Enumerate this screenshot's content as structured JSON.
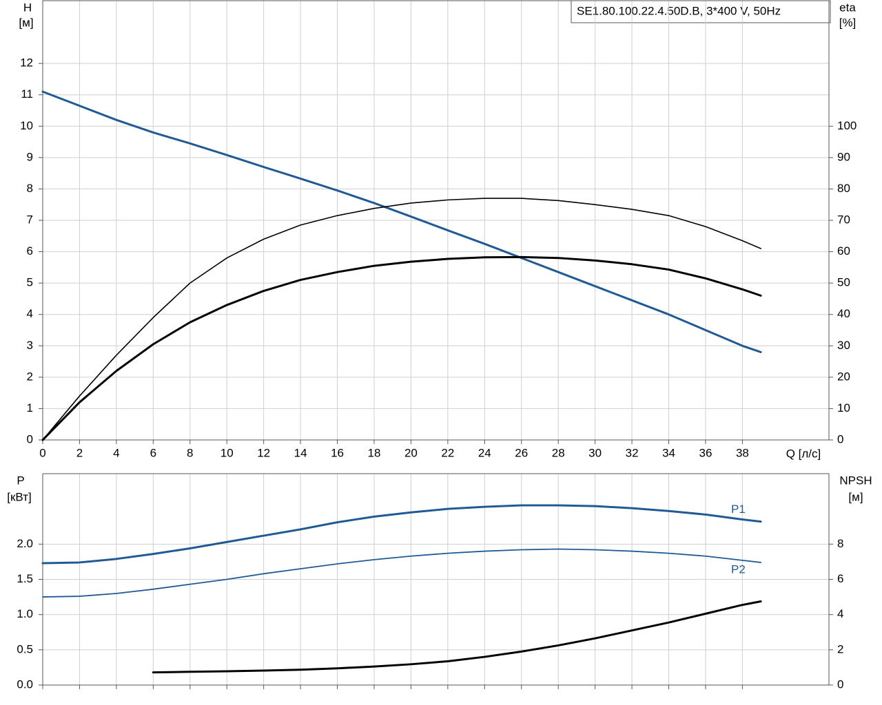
{
  "chart_data": [
    {
      "type": "line",
      "title": "SE1.80.100.22.4.50D.B, 3*400 V, 50Hz",
      "xlabel": "Q [л/с]",
      "ylabel": "H",
      "yunit": "[м]",
      "y2label": "eta",
      "y2unit": "[%]",
      "x": [
        0,
        2,
        4,
        6,
        8,
        10,
        12,
        14,
        16,
        18,
        20,
        22,
        24,
        26,
        28,
        30,
        32,
        34,
        36,
        38,
        39
      ],
      "xlim": [
        0,
        42.7
      ],
      "xticks": [
        0,
        2,
        4,
        6,
        8,
        10,
        12,
        14,
        16,
        18,
        20,
        22,
        24,
        26,
        28,
        30,
        32,
        34,
        36,
        38
      ],
      "ylim": [
        0,
        14
      ],
      "yticks": [
        0,
        1,
        2,
        3,
        4,
        5,
        6,
        7,
        8,
        9,
        10,
        11,
        12
      ],
      "y2lim": [
        0,
        140
      ],
      "y2ticks": [
        0,
        10,
        20,
        30,
        40,
        50,
        60,
        70,
        80,
        90,
        100
      ],
      "grid": true,
      "series": [
        {
          "color": "#1f5a96",
          "values": [
            11.1,
            10.65,
            10.2,
            9.8,
            9.45,
            9.08,
            8.7,
            8.33,
            7.95,
            7.55,
            7.12,
            6.68,
            6.25,
            5.8,
            5.35,
            4.9,
            4.45,
            4.0,
            3.5,
            3.0,
            2.8
          ]
        },
        {
          "color": "#000000",
          "axis": "y2",
          "values": [
            0,
            14,
            27,
            39,
            50,
            58,
            64,
            68.5,
            71.5,
            73.8,
            75.5,
            76.5,
            77,
            77,
            76.3,
            75,
            73.5,
            71.5,
            68,
            63.5,
            61
          ]
        },
        {
          "color": "#000000",
          "axis": "y2",
          "values": [
            0,
            12,
            22,
            30.5,
            37.5,
            43,
            47.5,
            51,
            53.5,
            55.5,
            56.8,
            57.7,
            58.2,
            58.3,
            58,
            57.2,
            56,
            54.3,
            51.5,
            48,
            46
          ]
        }
      ]
    },
    {
      "type": "line",
      "ylabel": "P",
      "yunit": "[кВт]",
      "y2label": "NPSH",
      "y2unit": "[м]",
      "x": [
        0,
        2,
        4,
        6,
        8,
        10,
        12,
        14,
        16,
        18,
        20,
        22,
        24,
        26,
        28,
        30,
        32,
        34,
        36,
        38,
        39
      ],
      "xlim": [
        0,
        42.7
      ],
      "ylim": [
        0,
        3
      ],
      "yticks": [
        {
          "value": 0,
          "label": "0.0"
        },
        0.5,
        {
          "value": 1,
          "label": "1.0"
        },
        1.5,
        {
          "value": 2,
          "label": "2.0"
        }
      ],
      "y2lim": [
        0,
        12
      ],
      "y2ticks": [
        0,
        2,
        4,
        6,
        8
      ],
      "grid": true,
      "series": [
        {
          "name": "P1",
          "color": "#1f5a96",
          "values": [
            1.73,
            1.74,
            1.79,
            1.86,
            1.94,
            2.03,
            2.12,
            2.21,
            2.31,
            2.39,
            2.45,
            2.5,
            2.53,
            2.55,
            2.55,
            2.54,
            2.51,
            2.47,
            2.42,
            2.35,
            2.32
          ]
        },
        {
          "name": "P2",
          "color": "#1f5a96",
          "values": [
            1.25,
            1.26,
            1.3,
            1.36,
            1.43,
            1.5,
            1.58,
            1.65,
            1.72,
            1.78,
            1.83,
            1.87,
            1.9,
            1.92,
            1.93,
            1.92,
            1.9,
            1.87,
            1.83,
            1.77,
            1.74
          ]
        },
        {
          "color": "#000000",
          "axis": "y2",
          "values": [
            null,
            null,
            null,
            0.72,
            0.75,
            0.78,
            0.82,
            0.87,
            0.95,
            1.05,
            1.18,
            1.35,
            1.6,
            1.9,
            2.25,
            2.65,
            3.1,
            3.55,
            4.05,
            4.55,
            4.75
          ]
        }
      ]
    }
  ]
}
